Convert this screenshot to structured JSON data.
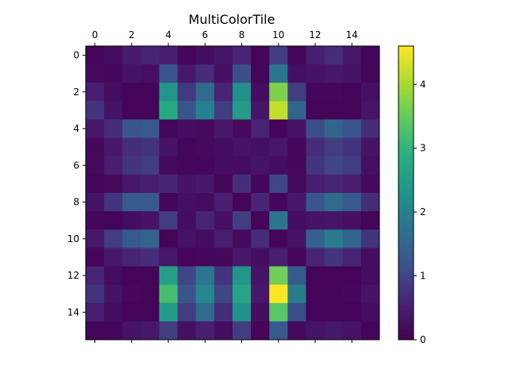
{
  "chart_data": {
    "type": "heatmap",
    "title": "MultiColorTile",
    "xlabel": "",
    "ylabel": "",
    "x_ticks_top": [
      "0",
      "2",
      "4",
      "6",
      "8",
      "10",
      "12",
      "14"
    ],
    "y_ticks": [
      "0",
      "2",
      "4",
      "6",
      "8",
      "10",
      "12",
      "14"
    ],
    "grid": false,
    "colormap": "viridis",
    "colorbar": {
      "min": 0,
      "max": 4.6,
      "ticks": [
        {
          "value": 0,
          "label": "0"
        },
        {
          "value": 1,
          "label": "1"
        },
        {
          "value": 2,
          "label": "2"
        },
        {
          "value": 3,
          "label": "3"
        },
        {
          "value": 4,
          "label": "4"
        }
      ]
    },
    "values": [
      [
        0.05,
        0.2,
        0.45,
        0.6,
        0.5,
        0.1,
        0.2,
        0.35,
        0.6,
        0.05,
        0.9,
        0.1,
        0.5,
        0.7,
        0.4,
        0.1
      ],
      [
        0.15,
        0.1,
        0.3,
        0.25,
        1.2,
        0.4,
        0.7,
        0.25,
        1.1,
        0.05,
        1.8,
        0.25,
        0.3,
        0.4,
        0.3,
        0.1
      ],
      [
        0.5,
        0.2,
        0.05,
        0.05,
        2.4,
        0.85,
        1.6,
        0.6,
        2.3,
        0.2,
        3.7,
        0.9,
        0.1,
        0.1,
        0.05,
        0.25
      ],
      [
        0.8,
        0.3,
        0.05,
        0.05,
        2.8,
        1.2,
        2.0,
        0.9,
        2.5,
        0.35,
        4.2,
        1.5,
        0.05,
        0.05,
        0.05,
        0.35
      ],
      [
        0.4,
        0.7,
        1.2,
        1.3,
        0.1,
        0.2,
        0.15,
        0.4,
        0.15,
        0.6,
        0.05,
        0.3,
        1.1,
        1.5,
        1.2,
        0.7
      ],
      [
        0.1,
        0.4,
        0.7,
        0.8,
        0.3,
        0.1,
        0.15,
        0.2,
        0.3,
        0.25,
        0.4,
        0.1,
        0.7,
        0.9,
        0.8,
        0.3
      ],
      [
        0.15,
        0.5,
        0.8,
        0.9,
        0.15,
        0.1,
        0.1,
        0.2,
        0.2,
        0.3,
        0.2,
        0.1,
        0.8,
        1.0,
        0.9,
        0.25
      ],
      [
        0.1,
        0.15,
        0.4,
        0.5,
        0.6,
        0.3,
        0.4,
        0.1,
        0.7,
        0.1,
        1.0,
        0.15,
        0.5,
        0.6,
        0.5,
        0.15
      ],
      [
        0.3,
        0.8,
        1.3,
        1.3,
        0.1,
        0.25,
        0.2,
        0.5,
        0.05,
        0.6,
        0.1,
        0.4,
        1.2,
        1.6,
        1.3,
        0.7
      ],
      [
        0.1,
        0.05,
        0.2,
        0.3,
        0.9,
        0.2,
        0.6,
        0.25,
        0.9,
        0.05,
        1.8,
        0.2,
        0.3,
        0.35,
        0.25,
        0.05
      ],
      [
        0.4,
        0.9,
        1.3,
        1.5,
        0.05,
        0.3,
        0.2,
        0.5,
        0.15,
        0.7,
        0.05,
        0.3,
        1.4,
        1.9,
        1.5,
        0.8
      ],
      [
        0.05,
        0.4,
        0.6,
        0.7,
        0.4,
        0.05,
        0.1,
        0.1,
        0.4,
        0.2,
        0.5,
        0.05,
        0.6,
        0.8,
        0.6,
        0.2
      ],
      [
        0.6,
        0.2,
        0.05,
        0.05,
        2.6,
        1.0,
        1.8,
        0.8,
        2.4,
        0.3,
        3.6,
        1.3,
        0.05,
        0.05,
        0.05,
        0.2
      ],
      [
        0.8,
        0.3,
        0.1,
        0.05,
        3.2,
        1.2,
        2.1,
        1.0,
        2.7,
        0.4,
        4.6,
        1.9,
        0.05,
        0.05,
        0.1,
        0.3
      ],
      [
        0.5,
        0.2,
        0.05,
        0.05,
        2.5,
        0.9,
        1.6,
        0.7,
        2.3,
        0.2,
        3.4,
        1.1,
        0.05,
        0.05,
        0.05,
        0.2
      ],
      [
        0.05,
        0.1,
        0.3,
        0.4,
        0.9,
        0.25,
        0.5,
        0.2,
        0.9,
        0.05,
        1.3,
        0.15,
        0.3,
        0.4,
        0.3,
        0.1
      ]
    ]
  }
}
